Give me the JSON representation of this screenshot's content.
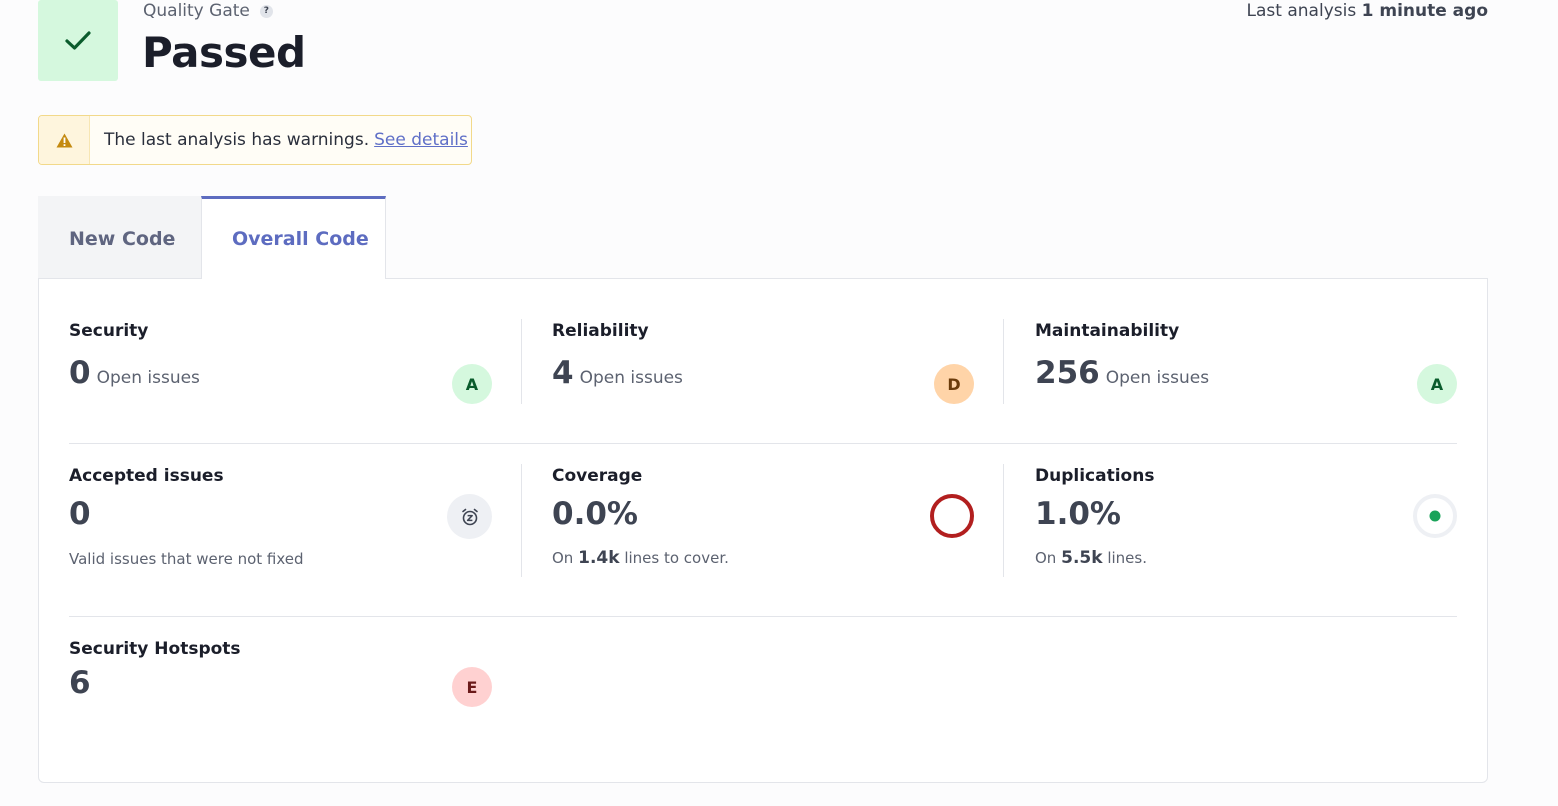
{
  "quality_gate": {
    "label": "Quality Gate",
    "help": "?",
    "status": "Passed",
    "last_analysis_prefix": "Last analysis",
    "last_analysis_time": "1 minute ago"
  },
  "warning": {
    "text": "The last analysis has warnings.",
    "link": "See details"
  },
  "tabs": [
    {
      "label": "New Code",
      "active": false
    },
    {
      "label": "Overall Code",
      "active": true
    }
  ],
  "metrics": {
    "security": {
      "title": "Security",
      "value": "0",
      "unit": "Open issues",
      "rating": "A"
    },
    "reliability": {
      "title": "Reliability",
      "value": "4",
      "unit": "Open issues",
      "rating": "D"
    },
    "maintainability": {
      "title": "Maintainability",
      "value": "256",
      "unit": "Open issues",
      "rating": "A"
    },
    "accepted": {
      "title": "Accepted issues",
      "value": "0",
      "description": "Valid issues that were not fixed"
    },
    "coverage": {
      "title": "Coverage",
      "value": "0.0%",
      "sub_prefix": "On",
      "sub_value": "1.4k",
      "sub_suffix": "lines to cover."
    },
    "duplications": {
      "title": "Duplications",
      "value": "1.0%",
      "sub_prefix": "On",
      "sub_value": "5.5k",
      "sub_suffix": "lines."
    },
    "hotspots": {
      "title": "Security Hotspots",
      "value": "6",
      "rating": "E"
    }
  },
  "colors": {
    "rating_a_bg": "#d5f8de",
    "rating_a_fg": "#0a5c2c",
    "rating_d_bg": "#ffd4a8",
    "rating_d_fg": "#6b3b0a",
    "rating_e_bg": "#ffd1d1",
    "rating_e_fg": "#6b1a1a",
    "coverage_ring": "#b21f1f",
    "duplication_dot": "#1aa35a",
    "accent": "#5d6cc0"
  }
}
